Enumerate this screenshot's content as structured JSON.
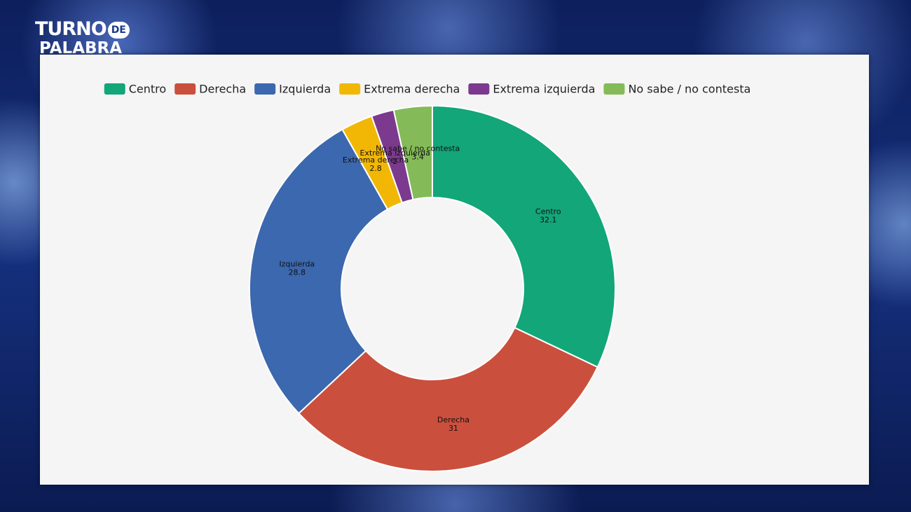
{
  "logo": {
    "word1": "TURNO",
    "word2": "DE",
    "word3": "PALABRA"
  },
  "chart_data": {
    "type": "donut",
    "categories": [
      "Centro",
      "Derecha",
      "Izquierda",
      "Extrema derecha",
      "Extrema izquierda",
      "No sabe / no contesta"
    ],
    "values": [
      32.1,
      31,
      28.8,
      2.8,
      2,
      3.4
    ],
    "colors": [
      "#13a678",
      "#cb4f3d",
      "#3b68ae",
      "#f2b705",
      "#7b3a8e",
      "#84bb58"
    ],
    "legend": "top"
  }
}
